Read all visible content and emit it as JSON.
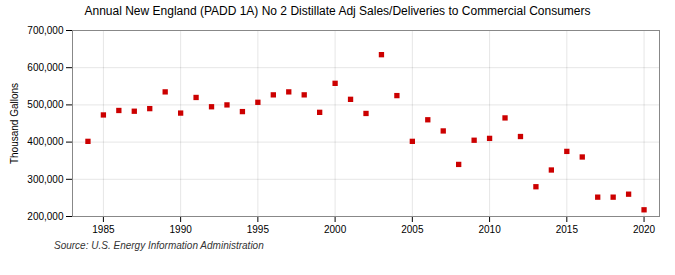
{
  "chart_data": {
    "type": "scatter",
    "title": "Annual New England (PADD 1A) No 2 Distillate Adj Sales/Deliveries to Commercial Consumers",
    "ylabel": "Thousand Gallons",
    "source": "Source: U.S. Energy Information Administration",
    "x": [
      1984,
      1985,
      1986,
      1987,
      1988,
      1989,
      1990,
      1991,
      1992,
      1993,
      1994,
      1995,
      1996,
      1997,
      1998,
      1999,
      2000,
      2001,
      2002,
      2003,
      2004,
      2005,
      2006,
      2007,
      2008,
      2009,
      2010,
      2011,
      2012,
      2013,
      2014,
      2015,
      2016,
      2017,
      2018,
      2019,
      2020
    ],
    "values": [
      402000,
      473000,
      485000,
      483000,
      490000,
      535000,
      478000,
      520000,
      495000,
      500000,
      482000,
      507000,
      527000,
      535000,
      527000,
      480000,
      558000,
      515000,
      477000,
      635000,
      525000,
      402000,
      460000,
      430000,
      340000,
      405000,
      410000,
      465000,
      415000,
      280000,
      325000,
      375000,
      360000,
      252000,
      252000,
      260000,
      218000
    ],
    "color": "#cc0000",
    "marker": "square",
    "xlim": [
      1983,
      2021
    ],
    "ylim": [
      200000,
      700000
    ],
    "xticks": [
      1985,
      1990,
      1995,
      2000,
      2005,
      2010,
      2015,
      2020
    ],
    "yticks": [
      {
        "value": 200000,
        "label": "200,000"
      },
      {
        "value": 300000,
        "label": "300,000"
      },
      {
        "value": 400000,
        "label": "400,000"
      },
      {
        "value": 500000,
        "label": "500,000"
      },
      {
        "value": 600000,
        "label": "600,000"
      },
      {
        "value": 700000,
        "label": "700,000"
      }
    ],
    "grid": true
  }
}
